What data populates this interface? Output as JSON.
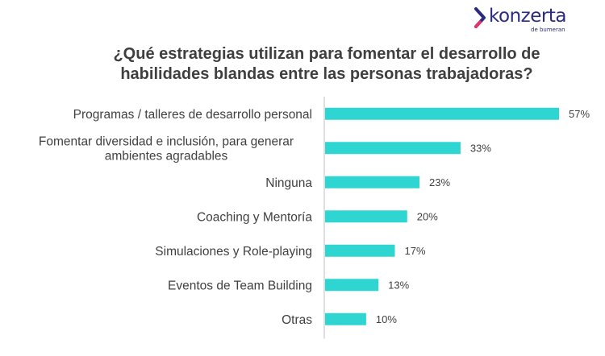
{
  "brand": {
    "name": "konzerta",
    "tagline": "de bumeran",
    "color": "#2b2a7f",
    "accent": "#e8316a"
  },
  "title_lines": [
    "¿Qué estrategias utilizan para fomentar el desarrollo de",
    "habilidades blandas entre las personas trabajadoras?"
  ],
  "chart_data": {
    "type": "bar",
    "orientation": "horizontal",
    "title": "¿Qué estrategias utilizan para fomentar el desarrollo de habilidades blandas entre las personas trabajadoras?",
    "categories": [
      [
        "Programas / talleres de desarrollo personal"
      ],
      [
        "Fomentar diversidad e inclusión, para generar",
        "ambientes agradables"
      ],
      [
        "Ninguna"
      ],
      [
        "Coaching y Mentoría"
      ],
      [
        "Simulaciones y Role-playing"
      ],
      [
        "Eventos de Team Building"
      ],
      [
        "Otras"
      ]
    ],
    "values": [
      57,
      33,
      23,
      20,
      17,
      13,
      10
    ],
    "value_labels": [
      "57%",
      "33%",
      "23%",
      "20%",
      "17%",
      "13%",
      "10%"
    ],
    "unit": "%",
    "xlim": [
      0,
      57
    ],
    "grid": false,
    "bar_color": "#2fd5d0"
  }
}
